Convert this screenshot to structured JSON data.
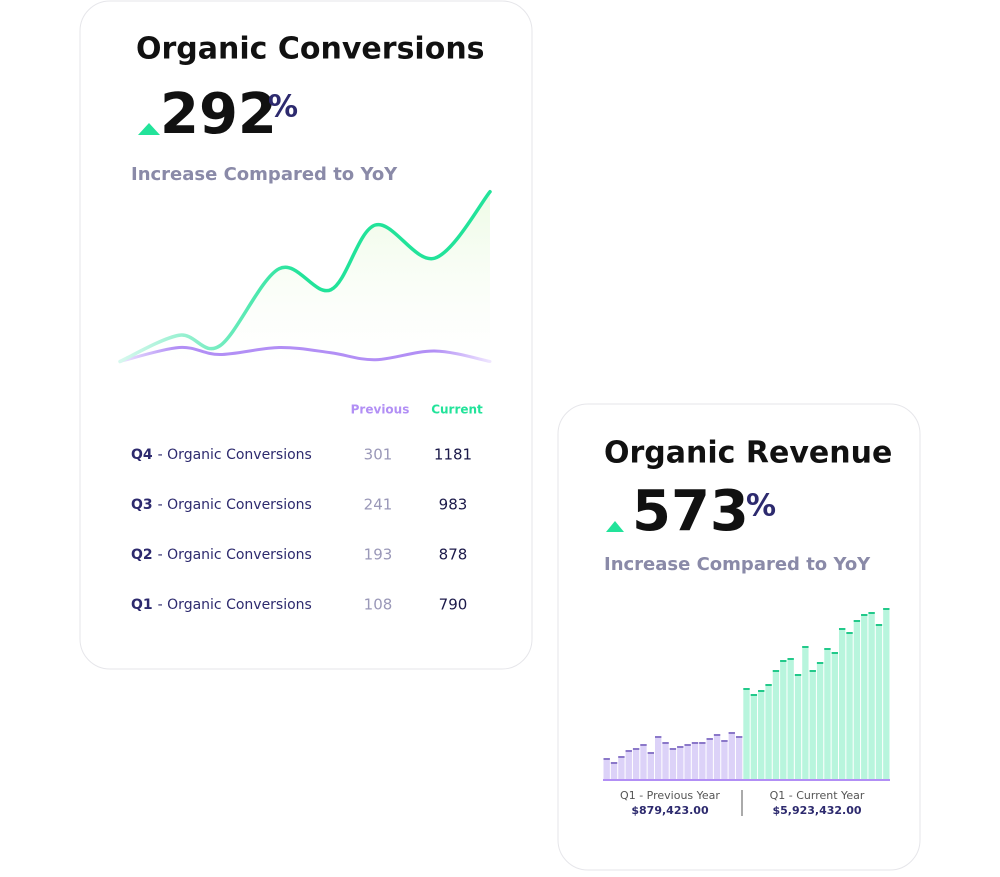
{
  "cards": [
    {
      "title": "Organic Conversions",
      "value": 292,
      "unit": "%",
      "subtitle": "Increase Compared to YoY",
      "chart": {
        "type": "line",
        "xlim": [
          0,
          100
        ],
        "ylim": [
          0,
          100
        ],
        "x": [
          0,
          16,
          27,
          43,
          57,
          69,
          85,
          100
        ],
        "series": [
          {
            "name": "Previous",
            "color": "#b28ff5",
            "values": [
              2,
              10,
              6,
              10,
              7,
              3,
              8,
              2
            ]
          },
          {
            "name": "Current",
            "color": "#22e39a",
            "values": [
              2,
              17,
              11,
              55,
              43,
              80,
              61,
              99
            ]
          }
        ]
      },
      "table": {
        "rows": [
          {
            "quarter": "Q4",
            "label": "- Organic Conversions",
            "previous": 301,
            "current": 1181
          },
          {
            "quarter": "Q3",
            "label": "- Organic Conversions",
            "previous": 241,
            "current": 983
          },
          {
            "quarter": "Q2",
            "label": "- Organic Conversions",
            "previous": 193,
            "current": 878
          },
          {
            "quarter": "Q1",
            "label": "- Organic Conversions",
            "previous": 108,
            "current": 790
          }
        ]
      }
    },
    {
      "title": "Organic Revenue",
      "value": 573,
      "unit": "%",
      "subtitle": "Increase Compared to YoY",
      "chart": {
        "type": "bar",
        "ylim": [
          0,
          180
        ],
        "series": [
          {
            "name": "Q1 - Previous Year",
            "total": "$879,423.00",
            "color": "#dcd2f8",
            "cap_color": "#8b78c9",
            "values": [
              22,
              18,
              24,
              30,
              32,
              36,
              28,
              44,
              38,
              32,
              34,
              36,
              38,
              38,
              42,
              46,
              40,
              48,
              44
            ]
          },
          {
            "name": "Q1 - Current Year",
            "total": "$5,923,432.00",
            "color": "#b8f5dd",
            "cap_color": "#22c98a",
            "values": [
              92,
              86,
              90,
              96,
              110,
              120,
              122,
              106,
              134,
              110,
              118,
              132,
              128,
              152,
              148,
              160,
              166,
              168,
              156,
              172
            ]
          }
        ]
      }
    }
  ]
}
